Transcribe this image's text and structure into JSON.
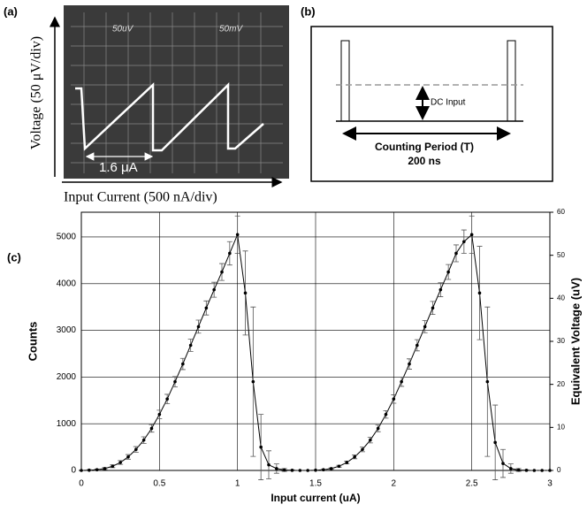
{
  "panel_a": {
    "label": "(a)",
    "scope_left": "50uV",
    "scope_right": "50mV",
    "y_label": "Voltage (50 μV/div)",
    "x_label": "Input Current (500 nA/div)",
    "span": "1.6 μA"
  },
  "panel_b": {
    "label": "(b)",
    "dc_input": "DC Input",
    "period": "Counting Period (T)",
    "duration": "200 ns"
  },
  "chart_data": {
    "type": "line",
    "panel_label": "(c)",
    "x_label": "Input current (uA)",
    "y_label": "Counts",
    "y2_label": "Equivalent Voltage (uV)",
    "color": "#000000",
    "grid": true,
    "x": [
      0,
      0.05,
      0.1,
      0.15,
      0.2,
      0.25,
      0.3,
      0.35,
      0.4,
      0.45,
      0.5,
      0.55,
      0.6,
      0.65,
      0.7,
      0.75,
      0.8,
      0.85,
      0.9,
      0.95,
      1,
      1.05,
      1.1,
      1.15,
      1.2,
      1.25,
      1.3,
      1.35,
      1.4,
      1.45,
      1.5,
      1.55,
      1.6,
      1.65,
      1.7,
      1.75,
      1.8,
      1.85,
      1.9,
      1.95,
      2,
      2.05,
      2.1,
      2.15,
      2.2,
      2.25,
      2.3,
      2.35,
      2.4,
      2.45,
      2.5,
      2.55,
      2.6,
      2.65,
      2.7,
      2.75,
      2.8,
      2.85,
      2.9,
      2.95,
      3
    ],
    "values": [
      0,
      5,
      15,
      40,
      90,
      170,
      290,
      450,
      650,
      900,
      1200,
      1530,
      1900,
      2280,
      2680,
      3080,
      3480,
      3870,
      4250,
      4650,
      5050,
      3800,
      1900,
      500,
      120,
      40,
      10,
      3,
      0,
      0,
      5,
      15,
      40,
      90,
      170,
      290,
      450,
      650,
      900,
      1200,
      1530,
      1900,
      2280,
      2680,
      3080,
      3480,
      3870,
      4250,
      4650,
      4900,
      5050,
      3800,
      1900,
      600,
      150,
      40,
      10,
      3,
      0,
      0,
      0
    ],
    "errors": [
      5,
      10,
      15,
      20,
      30,
      40,
      50,
      60,
      70,
      80,
      90,
      100,
      110,
      120,
      130,
      140,
      150,
      160,
      180,
      250,
      400,
      900,
      1600,
      700,
      300,
      100,
      30,
      10,
      5,
      5,
      5,
      10,
      15,
      20,
      30,
      40,
      50,
      60,
      70,
      80,
      90,
      100,
      110,
      120,
      130,
      140,
      150,
      160,
      180,
      250,
      400,
      1000,
      1600,
      800,
      300,
      100,
      30,
      10,
      5,
      5,
      5
    ],
    "xlim": [
      0,
      3
    ],
    "xticks": [
      0,
      0.5,
      1,
      1.5,
      2,
      2.5,
      3
    ],
    "ylim": [
      0,
      5530
    ],
    "yticks": [
      0,
      1000,
      2000,
      3000,
      4000,
      5000
    ],
    "y2lim": [
      0,
      60
    ],
    "y2ticks": [
      0,
      10,
      20,
      30,
      40,
      50,
      60
    ]
  }
}
